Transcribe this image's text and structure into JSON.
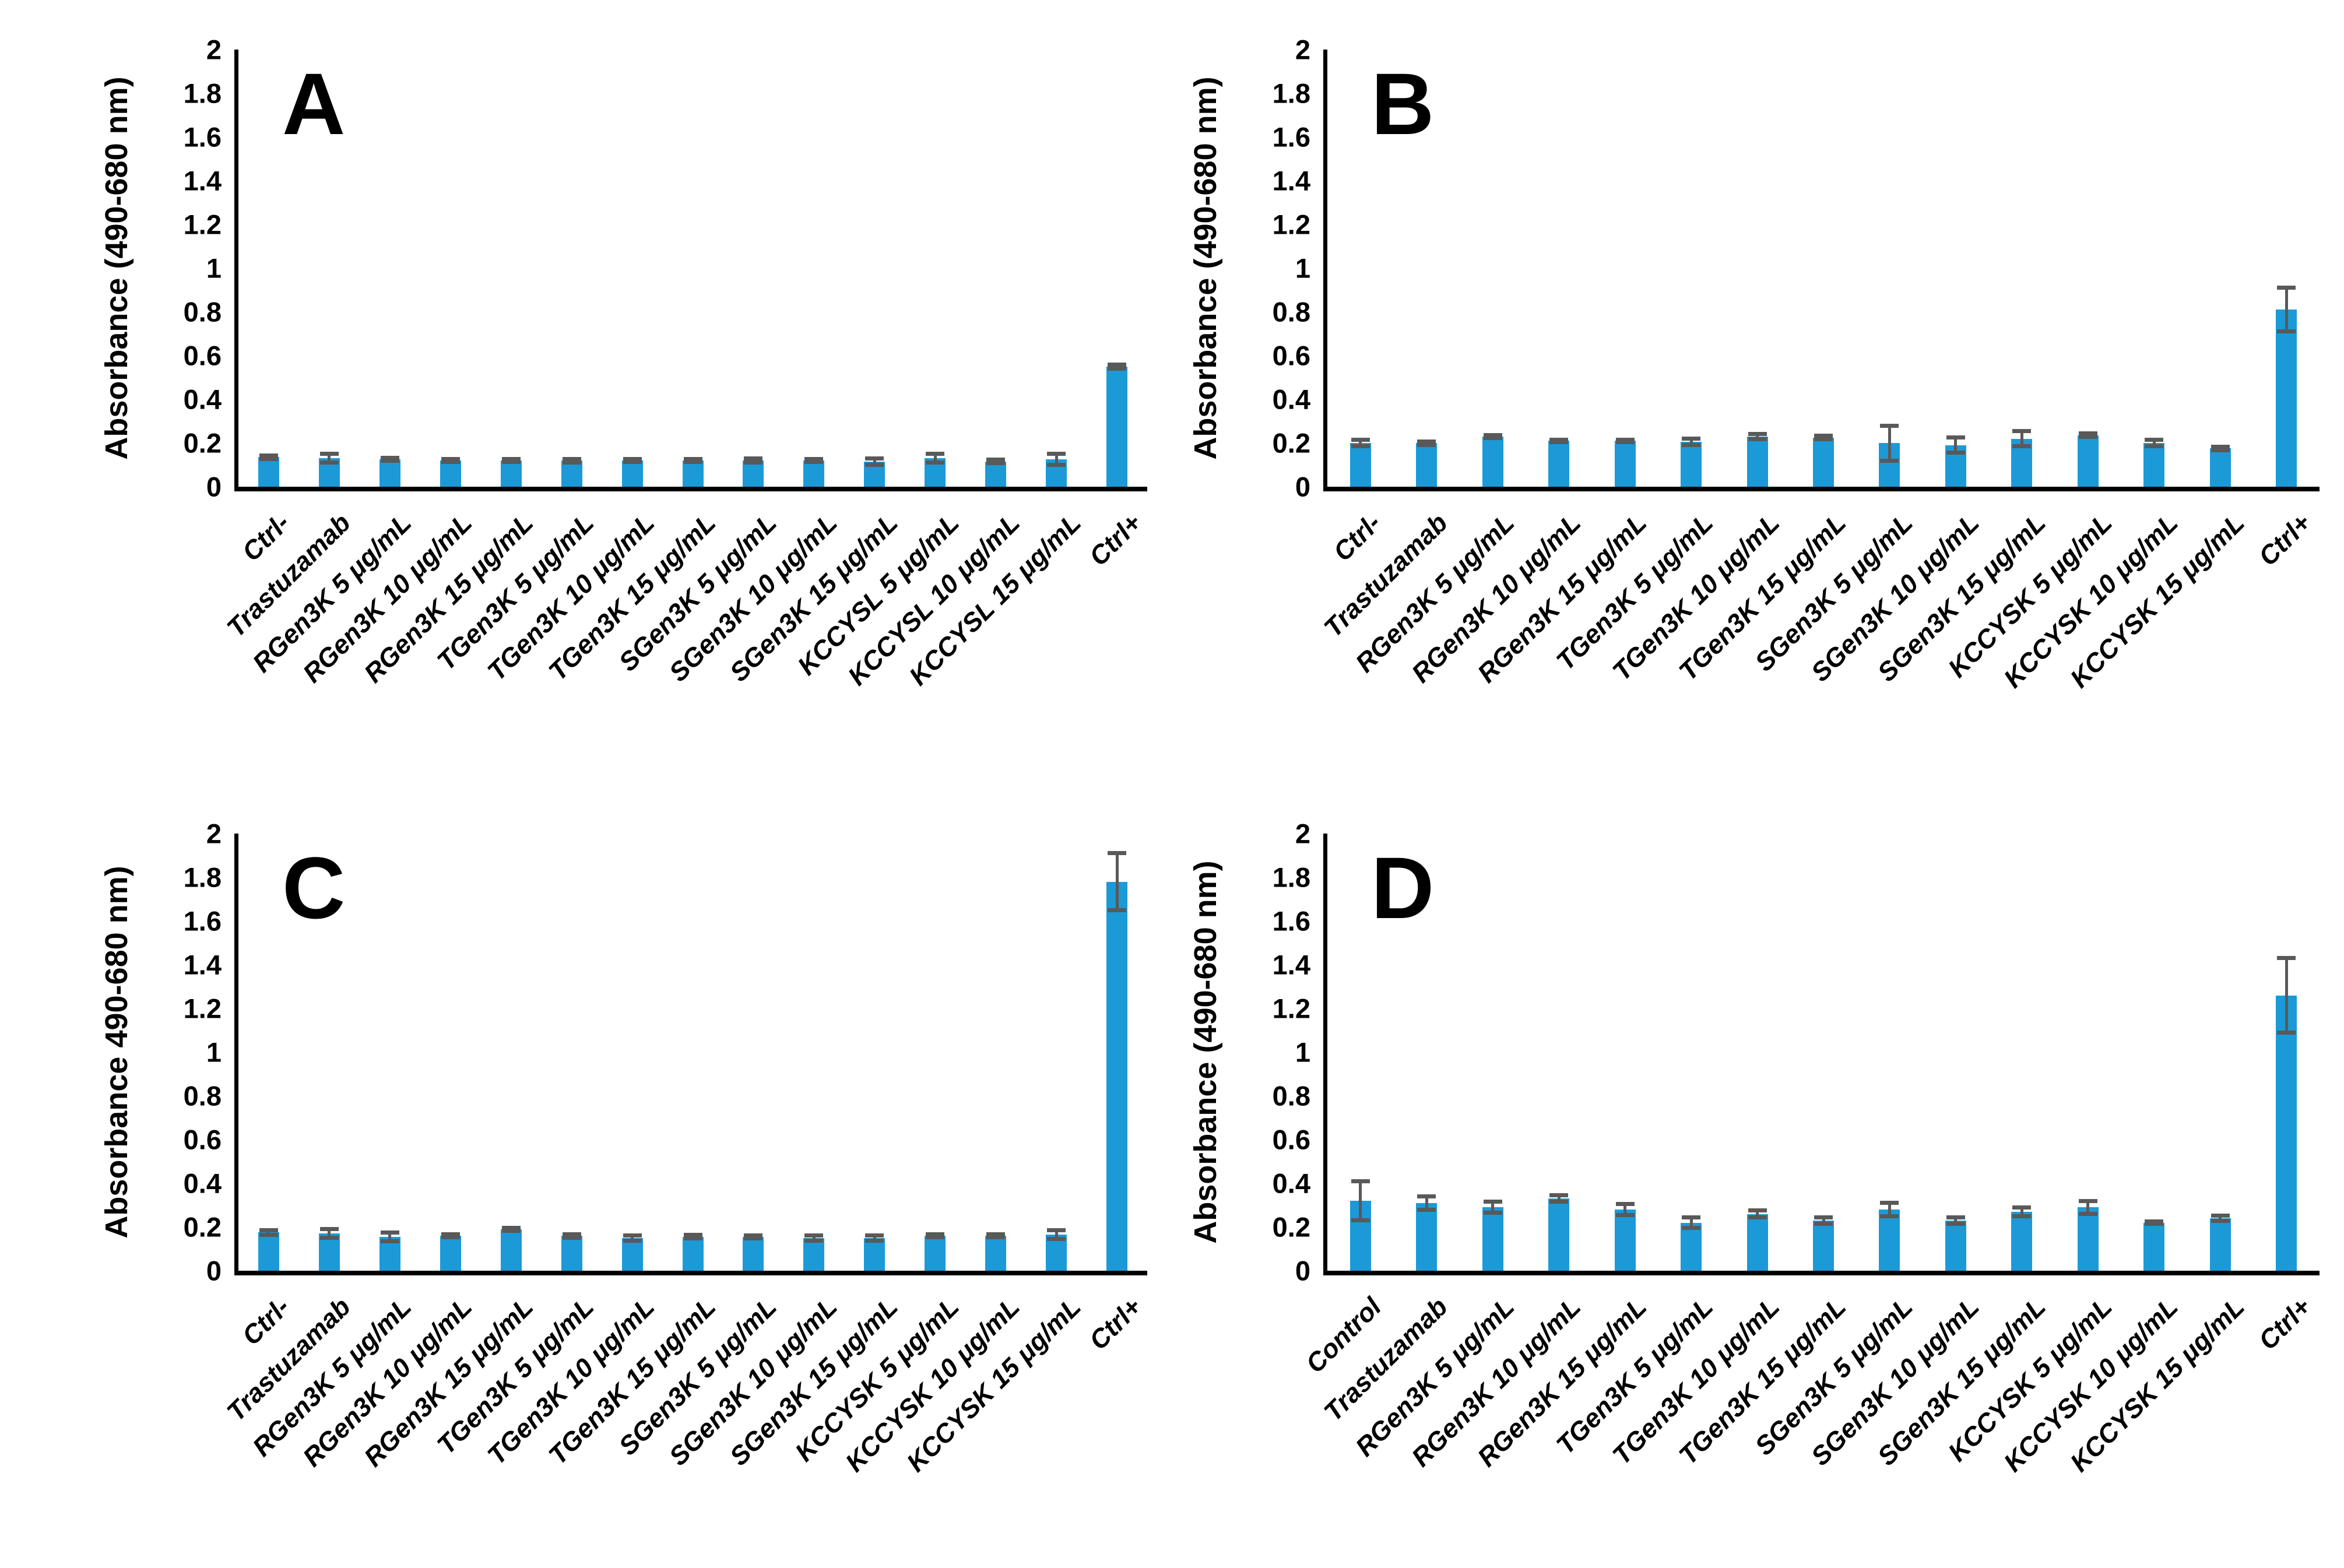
{
  "figure_kind": "four-panel bar chart figure",
  "chart_data": [
    {
      "type": "bar",
      "panel_label": "A",
      "ylabel": "Absorbance (490-680 nm)",
      "xlabel": "",
      "ylim": [
        0,
        2
      ],
      "ytick_step": 0.2,
      "yticks": [
        "0",
        "0.2",
        "0.4",
        "0.6",
        "0.8",
        "1",
        "1.2",
        "1.4",
        "1.6",
        "1.8",
        "2"
      ],
      "grid": "off",
      "legend": "none",
      "bar_color": "#1B9AD7",
      "error_color": "#595959",
      "categories": [
        "Ctrl-",
        "Trastuzamab",
        "RGen3K 5 μg/mL",
        "RGen3K 10 μg/mL",
        "RGen3K 15 μg/mL",
        "TGen3K 5 μg/mL",
        "TGen3K 10 μg/mL",
        "TGen3K 15 μg/mL",
        "SGen3K 5 μg/mL",
        "SGen3K 10 μg/mL",
        "SGen3K 15 μg/mL",
        "KCCYSL 5 μg/mL",
        "KCCYSL  10 μg/mL",
        "KCCYSL  15 μg/mL",
        "Ctrl+"
      ],
      "values": [
        0.135,
        0.13,
        0.125,
        0.12,
        0.12,
        0.12,
        0.12,
        0.12,
        0.12,
        0.12,
        0.115,
        0.13,
        0.115,
        0.125,
        0.55
      ],
      "errors": [
        0.008,
        0.02,
        0.006,
        0.006,
        0.006,
        0.008,
        0.006,
        0.006,
        0.01,
        0.006,
        0.015,
        0.02,
        0.008,
        0.025,
        0.01
      ]
    },
    {
      "type": "bar",
      "panel_label": "B",
      "ylabel": "Absorbance (490-680 nm)",
      "xlabel": "",
      "ylim": [
        0,
        2
      ],
      "ytick_step": 0.2,
      "yticks": [
        "0",
        "0.2",
        "0.4",
        "0.6",
        "0.8",
        "1",
        "1.2",
        "1.4",
        "1.6",
        "1.8",
        "2"
      ],
      "grid": "off",
      "legend": "none",
      "bar_color": "#1B9AD7",
      "error_color": "#595959",
      "categories": [
        "Ctrl-",
        "Trastuzamab",
        "RGen3K 5 μg/mL",
        "RGen3K 10 μg/mL",
        "RGen3K 15 μg/mL",
        "TGen3K 5 μg/mL",
        "TGen3K 10 μg/mL",
        "TGen3K 15 μg/mL",
        "SGen3K 5 μg/mL",
        "SGen3K 10 μg/mL",
        "SGen3K 15 μg/mL",
        "KCCYSK 5 μg/mL",
        "KCCYSK  10 μg/mL",
        "KCCYSK  15 μg/mL",
        "Ctrl+"
      ],
      "values": [
        0.2,
        0.2,
        0.23,
        0.21,
        0.21,
        0.205,
        0.23,
        0.225,
        0.2,
        0.19,
        0.22,
        0.235,
        0.2,
        0.175,
        0.81
      ],
      "errors": [
        0.015,
        0.008,
        0.006,
        0.006,
        0.006,
        0.015,
        0.012,
        0.008,
        0.08,
        0.035,
        0.035,
        0.008,
        0.015,
        0.008,
        0.1
      ]
    },
    {
      "type": "bar",
      "panel_label": "C",
      "ylabel": "Absorbance 490-680 nm)",
      "xlabel": "",
      "ylim": [
        0,
        2
      ],
      "ytick_step": 0.2,
      "yticks": [
        "0",
        "0.2",
        "0.4",
        "0.6",
        "0.8",
        "1",
        "1.2",
        "1.4",
        "1.6",
        "1.8",
        "2"
      ],
      "grid": "off",
      "legend": "none",
      "bar_color": "#1B9AD7",
      "error_color": "#595959",
      "categories": [
        "Ctrl-",
        "Trastuzamab",
        "RGen3K 5 μg/mL",
        "RGen3K 10 μg/mL",
        "RGen3K 15 μg/mL",
        "TGen3K 5 μg/mL",
        "TGen3K 10 μg/mL",
        "TGen3K 15 μg/mL",
        "SGen3K 5 μg/mL",
        "SGen3K 10 μg/mL",
        "SGen3K 15 μg/mL",
        "KCCYSK 5 μg/mL",
        "KCCYSK 10 μg/mL",
        "KCCYSK 15 μg/mL",
        "Ctrl+"
      ],
      "values": [
        0.175,
        0.17,
        0.155,
        0.16,
        0.19,
        0.16,
        0.15,
        0.155,
        0.155,
        0.15,
        0.15,
        0.16,
        0.16,
        0.165,
        1.78
      ],
      "errors": [
        0.01,
        0.02,
        0.02,
        0.006,
        0.006,
        0.008,
        0.012,
        0.008,
        0.006,
        0.012,
        0.012,
        0.006,
        0.006,
        0.02,
        0.13
      ]
    },
    {
      "type": "bar",
      "panel_label": "D",
      "ylabel": "Absorbance (490-680 nm)",
      "xlabel": "",
      "ylim": [
        0,
        2
      ],
      "ytick_step": 0.2,
      "yticks": [
        "0",
        "0.2",
        "0.4",
        "0.6",
        "0.8",
        "1",
        "1.2",
        "1.4",
        "1.6",
        "1.8",
        "2"
      ],
      "grid": "off",
      "legend": "none",
      "bar_color": "#1B9AD7",
      "error_color": "#595959",
      "categories": [
        "Control",
        "Trastuzamab",
        "RGen3K 5 μg/mL",
        "RGen3K 10 μg/mL",
        "RGen3K 15 μg/mL",
        "TGen3K 5 μg/mL",
        "TGen3K 10 μg/mL",
        "TGen3K 15 μg/mL",
        "SGen3K 5 μg/mL",
        "SGen3K 10 μg/mL",
        "SGen3K 15 μg/mL",
        "KCCYSK 5 μg/mL",
        "KCCYSK  10 μg/mL",
        "KCCYSK  15 μg/mL",
        "Ctrl+"
      ],
      "values": [
        0.32,
        0.31,
        0.29,
        0.33,
        0.28,
        0.22,
        0.26,
        0.23,
        0.28,
        0.23,
        0.27,
        0.29,
        0.22,
        0.24,
        1.26
      ],
      "errors": [
        0.09,
        0.03,
        0.025,
        0.015,
        0.025,
        0.025,
        0.015,
        0.015,
        0.03,
        0.015,
        0.02,
        0.03,
        0.006,
        0.012,
        0.17
      ]
    }
  ]
}
